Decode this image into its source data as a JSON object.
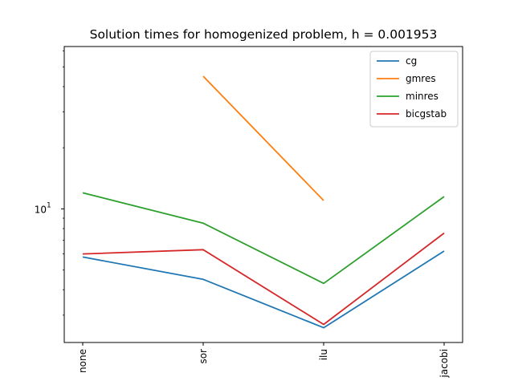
{
  "chart_data": {
    "type": "line",
    "title": "Solution times for homogenized problem, h = 0.001953",
    "xlabel": "",
    "ylabel": "",
    "categories": [
      "none",
      "sor",
      "ilu",
      "jacobi"
    ],
    "yscale": "log",
    "ylim": [
      2.2,
      63
    ],
    "yticks": [
      {
        "value": 10,
        "label": "10",
        "exponent": "1"
      }
    ],
    "grid": false,
    "legend_position": "top-right",
    "series": [
      {
        "name": "cg",
        "color": "#1f77b4",
        "values": [
          5.8,
          4.5,
          2.6,
          6.2
        ]
      },
      {
        "name": "gmres",
        "color": "#ff7f0e",
        "values": [
          null,
          45,
          11,
          null
        ]
      },
      {
        "name": "minres",
        "color": "#2ca02c",
        "values": [
          12,
          8.5,
          4.3,
          11.5
        ]
      },
      {
        "name": "bicgstab",
        "color": "#d62728",
        "values": [
          6.0,
          6.3,
          2.7,
          7.6
        ]
      }
    ]
  }
}
